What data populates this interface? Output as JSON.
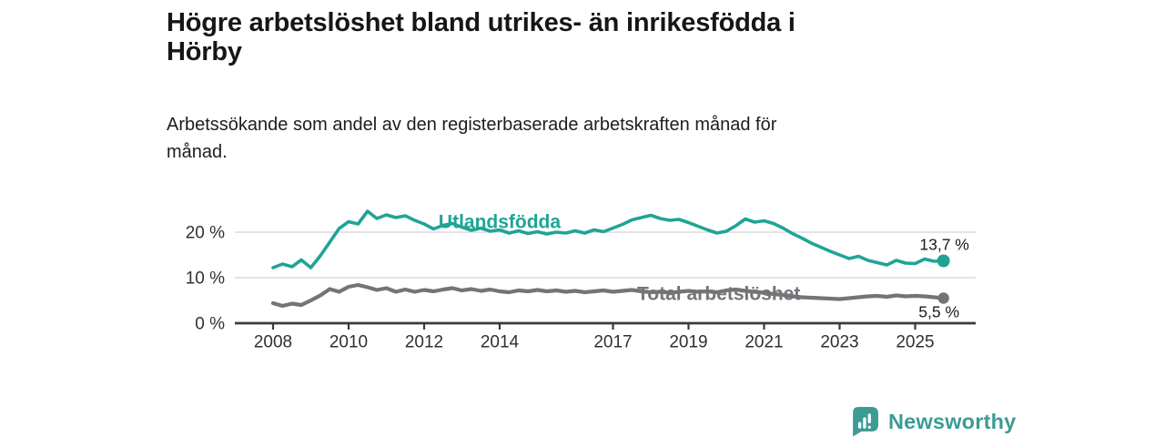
{
  "header": {
    "title_line1": "Högre arbetslöshet bland utrikes- än inrikesfödda i",
    "title_line2": "Hörby",
    "subtitle_line1": "Arbetssökande som andel av den registerbaserade arbetskraften månad för",
    "subtitle_line2": "månad."
  },
  "chart_data": {
    "type": "line",
    "title": "Högre arbetslöshet bland utrikes- än inrikesfödda i Hörby",
    "subtitle": "Arbetssökande som andel av den registerbaserade arbetskraften månad för månad.",
    "unit": "%",
    "grid": "horizontal-only",
    "legend": "inline-labels",
    "x": {
      "start": 2008,
      "step_years": 0.25,
      "end": 2025.75
    },
    "x_axis_range": [
      2007,
      2026.6
    ],
    "x_tick_values": [
      2008,
      2010,
      2012,
      2014,
      2017,
      2019,
      2021,
      2023,
      2025
    ],
    "x_tick_labels": [
      "2008",
      "2010",
      "2012",
      "2014",
      "2017",
      "2019",
      "2021",
      "2023",
      "2025"
    ],
    "y_range": [
      0,
      27
    ],
    "y_ticks": [
      {
        "value": 0,
        "label": "0 %"
      },
      {
        "value": 10,
        "label": "10 %"
      },
      {
        "value": 20,
        "label": "20 %"
      }
    ],
    "series": [
      {
        "name": "Total arbetslöshet",
        "color": "#747478",
        "end_label": "5,5 %",
        "end_value": 5.5,
        "label_anchor": {
          "year": 2019.8,
          "pct": 6.6
        },
        "values": [
          4.4,
          3.8,
          4.3,
          4.0,
          5.0,
          6.1,
          7.5,
          6.9,
          8.0,
          8.4,
          7.9,
          7.3,
          7.7,
          6.9,
          7.4,
          6.9,
          7.3,
          7.0,
          7.4,
          7.7,
          7.2,
          7.5,
          7.1,
          7.4,
          7.0,
          6.8,
          7.2,
          7.0,
          7.3,
          7.0,
          7.2,
          6.9,
          7.1,
          6.8,
          7.0,
          7.2,
          6.9,
          7.1,
          7.3,
          7.0,
          6.8,
          6.9,
          6.7,
          6.9,
          7.1,
          6.9,
          7.0,
          6.8,
          7.2,
          7.4,
          7.1,
          6.9,
          6.7,
          6.4,
          6.2,
          5.9,
          5.7,
          5.6,
          5.5,
          5.4,
          5.3,
          5.5,
          5.7,
          5.9,
          6.0,
          5.8,
          6.1,
          5.9,
          6.0,
          5.9,
          5.7,
          5.5
        ]
      },
      {
        "name": "Utlandsfödda",
        "color": "#1fa494",
        "end_label": "13,7 %",
        "end_value": 13.7,
        "label_anchor": {
          "year": 2014.0,
          "pct": 22.4
        },
        "values": [
          12.2,
          13.0,
          12.4,
          13.9,
          12.2,
          14.8,
          17.8,
          20.8,
          22.3,
          21.8,
          24.6,
          23.0,
          23.8,
          23.2,
          23.6,
          22.6,
          21.8,
          20.7,
          21.5,
          21.9,
          21.1,
          20.4,
          20.9,
          20.2,
          20.5,
          19.8,
          20.3,
          19.7,
          20.1,
          19.6,
          20.0,
          19.8,
          20.3,
          19.8,
          20.5,
          20.1,
          20.9,
          21.7,
          22.7,
          23.2,
          23.7,
          23.0,
          22.6,
          22.8,
          22.1,
          21.3,
          20.5,
          19.8,
          20.2,
          21.4,
          22.9,
          22.2,
          22.5,
          21.9,
          20.9,
          19.7,
          18.7,
          17.6,
          16.7,
          15.8,
          15.0,
          14.2,
          14.7,
          13.8,
          13.3,
          12.8,
          13.8,
          13.2,
          13.1,
          14.1,
          13.6,
          13.7
        ]
      }
    ]
  },
  "footer": {
    "brand": "Newsworthy"
  },
  "colors": {
    "accent_teal": "#1fa494",
    "line_gray": "#747478",
    "brand_teal": "#3b9c94",
    "axis_text": "#303030",
    "grid_line": "#dcdcde",
    "axis_line": "#3a3a3c"
  }
}
